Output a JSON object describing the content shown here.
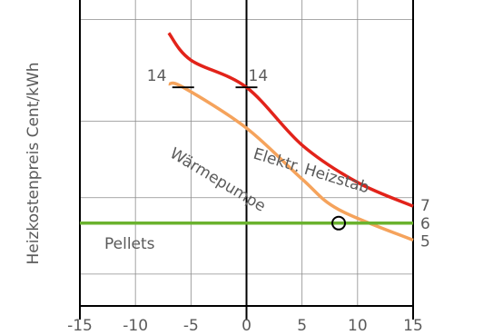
{
  "chart_data": {
    "type": "line",
    "title": "",
    "xlabel": "",
    "ylabel": "Heizkostenpreis Cent/kWh",
    "x_ticks": [
      -15,
      -10,
      -5,
      0,
      5,
      10,
      15
    ],
    "xlim": [
      -15,
      15
    ],
    "grid": true,
    "series": [
      {
        "name": "Elektr. Heizstab",
        "color": "#e2231a",
        "end_label": "7",
        "points": [
          [
            -7,
            17.2
          ],
          [
            -5,
            15.6
          ],
          [
            0,
            14
          ],
          [
            5,
            10.6
          ],
          [
            10,
            8.4
          ],
          [
            15,
            7
          ]
        ]
      },
      {
        "name": "Wärmepumpe",
        "color": "#f5a35c",
        "end_label": "5",
        "points": [
          [
            -7,
            14.2
          ],
          [
            -5.7,
            14
          ],
          [
            0,
            11.6
          ],
          [
            5,
            8.6
          ],
          [
            8.3,
            6.8
          ],
          [
            15,
            5
          ]
        ]
      },
      {
        "name": "Pellets",
        "color": "#6ab22e",
        "end_label": "6",
        "points": [
          [
            -15,
            6
          ],
          [
            15,
            6
          ]
        ]
      }
    ],
    "annotations": [
      {
        "text": "14",
        "x": -5.7,
        "y": 14
      },
      {
        "text": "14",
        "x": 0,
        "y": 14
      }
    ],
    "marker": {
      "x": 8.3,
      "y": 6
    }
  }
}
